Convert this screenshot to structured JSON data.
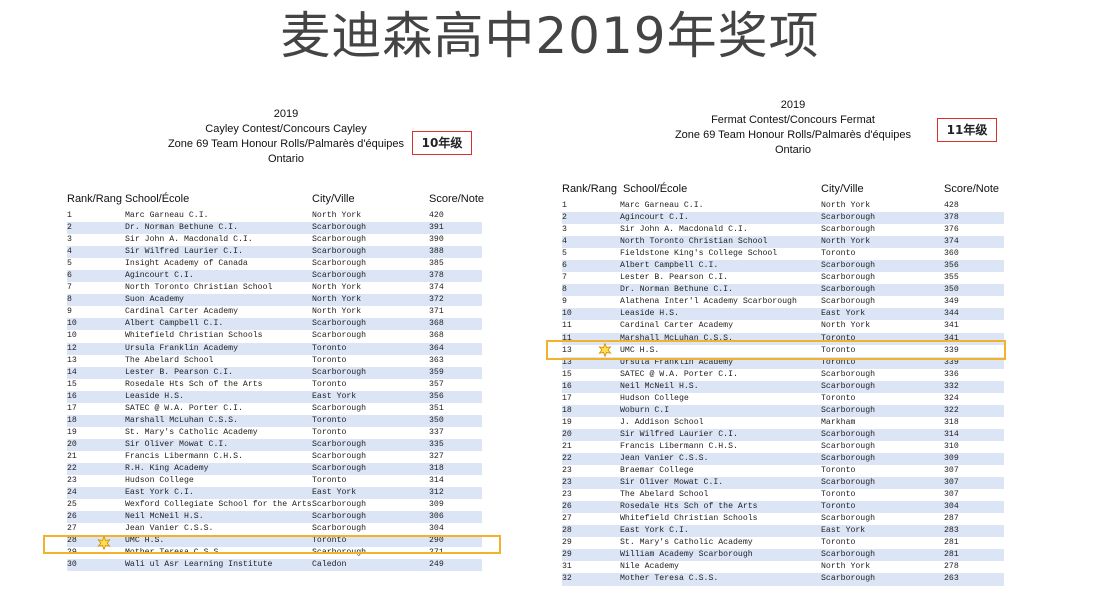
{
  "slide_title": "麦迪森高中2019年奖项",
  "left": {
    "header_lines": [
      "2019",
      "Cayley Contest/Concours Cayley",
      "Zone 69 Team Honour Rolls/Palmarès d'équipes",
      "Ontario"
    ],
    "grade_label": "10年级",
    "columns": [
      "Rank/Rang",
      "School/École",
      "City/Ville",
      "Score/Note"
    ],
    "rows": [
      [
        "1",
        "Marc Garneau C.I.",
        "North York",
        "420"
      ],
      [
        "2",
        "Dr. Norman Bethune C.I.",
        "Scarborough",
        "391"
      ],
      [
        "3",
        "Sir John A. Macdonald C.I.",
        "Scarborough",
        "390"
      ],
      [
        "4",
        "Sir Wilfred Laurier C.I.",
        "Scarborough",
        "388"
      ],
      [
        "5",
        "Insight Academy of Canada",
        "Scarborough",
        "385"
      ],
      [
        "6",
        "Agincourt C.I.",
        "Scarborough",
        "378"
      ],
      [
        "7",
        "North Toronto Christian School",
        "North York",
        "374"
      ],
      [
        "8",
        "Suon Academy",
        "North York",
        "372"
      ],
      [
        "9",
        "Cardinal Carter Academy",
        "North York",
        "371"
      ],
      [
        "10",
        "Albert Campbell C.I.",
        "Scarborough",
        "368"
      ],
      [
        "10",
        "Whitefield Christian Schools",
        "Scarborough",
        "368"
      ],
      [
        "12",
        "Ursula Franklin Academy",
        "Toronto",
        "364"
      ],
      [
        "13",
        "The Abelard School",
        "Toronto",
        "363"
      ],
      [
        "14",
        "Lester B. Pearson C.I.",
        "Scarborough",
        "359"
      ],
      [
        "15",
        "Rosedale Hts Sch of the Arts",
        "Toronto",
        "357"
      ],
      [
        "16",
        "Leaside H.S.",
        "East York",
        "356"
      ],
      [
        "17",
        "SATEC @ W.A. Porter C.I.",
        "Scarborough",
        "351"
      ],
      [
        "18",
        "Marshall McLuhan C.S.S.",
        "Toronto",
        "350"
      ],
      [
        "19",
        "St. Mary's Catholic Academy",
        "Toronto",
        "337"
      ],
      [
        "20",
        "Sir Oliver Mowat C.I.",
        "Scarborough",
        "335"
      ],
      [
        "21",
        "Francis Libermann C.H.S.",
        "Scarborough",
        "327"
      ],
      [
        "22",
        "R.H. King Academy",
        "Scarborough",
        "318"
      ],
      [
        "23",
        "Hudson College",
        "Toronto",
        "314"
      ],
      [
        "24",
        "East York C.I.",
        "East York",
        "312"
      ],
      [
        "25",
        "Wexford Collegiate School for the Arts",
        "Scarborough",
        "309"
      ],
      [
        "26",
        "Neil McNeil H.S.",
        "Scarborough",
        "306"
      ],
      [
        "27",
        "Jean Vanier C.S.S.",
        "Scarborough",
        "304"
      ],
      [
        "28",
        "UMC H.S.",
        "Toronto",
        "290"
      ],
      [
        "29",
        "Mother Teresa C.S.S.",
        "Scarborough",
        "271"
      ],
      [
        "30",
        "Wali ul Asr Learning Institute",
        "Caledon",
        "249"
      ]
    ]
  },
  "right": {
    "header_lines": [
      "2019",
      "Fermat Contest/Concours Fermat",
      "Zone 69 Team Honour Rolls/Palmarès d'équipes",
      "Ontario"
    ],
    "grade_label": "11年级",
    "columns": [
      "Rank/Rang",
      "School/École",
      "City/Ville",
      "Score/Note"
    ],
    "rows": [
      [
        "1",
        "Marc Garneau C.I.",
        "North York",
        "428"
      ],
      [
        "2",
        "Agincourt C.I.",
        "Scarborough",
        "378"
      ],
      [
        "3",
        "Sir John A. Macdonald C.I.",
        "Scarborough",
        "376"
      ],
      [
        "4",
        "North Toronto Christian School",
        "North York",
        "374"
      ],
      [
        "5",
        "Fieldstone King's College School",
        "Toronto",
        "360"
      ],
      [
        "6",
        "Albert Campbell C.I.",
        "Scarborough",
        "356"
      ],
      [
        "7",
        "Lester B. Pearson C.I.",
        "Scarborough",
        "355"
      ],
      [
        "8",
        "Dr. Norman Bethune C.I.",
        "Scarborough",
        "350"
      ],
      [
        "9",
        "Alathena Inter'l Academy Scarborough",
        "Scarborough",
        "349"
      ],
      [
        "10",
        "Leaside H.S.",
        "East York",
        "344"
      ],
      [
        "11",
        "Cardinal Carter Academy",
        "North York",
        "341"
      ],
      [
        "11",
        "Marshall McLuhan C.S.S.",
        "Toronto",
        "341"
      ],
      [
        "13",
        "UMC H.S.",
        "Toronto",
        "339"
      ],
      [
        "13",
        "Ursula Franklin Academy",
        "Toronto",
        "339"
      ],
      [
        "15",
        "SATEC @ W.A. Porter C.I.",
        "Scarborough",
        "336"
      ],
      [
        "16",
        "Neil McNeil H.S.",
        "Scarborough",
        "332"
      ],
      [
        "17",
        "Hudson College",
        "Toronto",
        "324"
      ],
      [
        "18",
        "Woburn C.I",
        "Scarborough",
        "322"
      ],
      [
        "19",
        "J. Addison School",
        "Markham",
        "318"
      ],
      [
        "20",
        "Sir Wilfred Laurier C.I.",
        "Scarborough",
        "314"
      ],
      [
        "21",
        "Francis Libermann C.H.S.",
        "Scarborough",
        "310"
      ],
      [
        "22",
        "Jean Vanier C.S.S.",
        "Scarborough",
        "309"
      ],
      [
        "23",
        "Braemar College",
        "Toronto",
        "307"
      ],
      [
        "23",
        "Sir Oliver Mowat C.I.",
        "Scarborough",
        "307"
      ],
      [
        "23",
        "The Abelard School",
        "Toronto",
        "307"
      ],
      [
        "26",
        "Rosedale Hts Sch of the Arts",
        "Toronto",
        "304"
      ],
      [
        "27",
        "Whitefield Christian Schools",
        "Scarborough",
        "287"
      ],
      [
        "28",
        "East York C.I.",
        "East York",
        "283"
      ],
      [
        "29",
        "St. Mary's Catholic Academy",
        "Toronto",
        "281"
      ],
      [
        "29",
        "William Academy Scarborough",
        "Scarborough",
        "281"
      ],
      [
        "31",
        "Nile Academy",
        "North York",
        "278"
      ],
      [
        "32",
        "Mother Teresa C.S.S.",
        "Scarborough",
        "263"
      ]
    ]
  },
  "highlight_color": "#f2b32a",
  "grade_border_color": "#d9302c",
  "star_icon": "star-icon"
}
